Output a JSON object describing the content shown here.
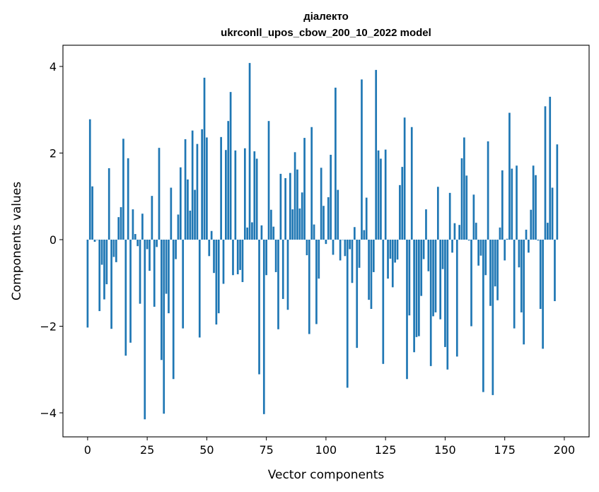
{
  "chart_data": {
    "type": "bar",
    "title_line1": "діалекто",
    "title_line2": "ukrconll_upos_cbow_200_10_2022 model",
    "xlabel": "Vector components",
    "ylabel": "Components values",
    "xlim": [
      -10.35,
      210.4
    ],
    "ylim": [
      -4.555,
      4.49
    ],
    "xticks": [
      0,
      25,
      50,
      75,
      100,
      125,
      150,
      175,
      200
    ],
    "xtick_labels": [
      "0",
      "25",
      "50",
      "75",
      "100",
      "125",
      "150",
      "175",
      "200"
    ],
    "yticks": [
      -4,
      -2,
      0,
      2,
      4
    ],
    "ytick_labels": [
      "−4",
      "−2",
      "0",
      "2",
      "4"
    ],
    "grid": false,
    "bar_color": "#1f77b4",
    "values": [
      -2.03,
      2.78,
      1.23,
      -0.05,
      0,
      -1.65,
      -0.58,
      -1.38,
      -1.03,
      1.65,
      -2.06,
      -0.4,
      -0.52,
      0.52,
      0.75,
      2.33,
      -2.68,
      1.88,
      -2.38,
      0.7,
      0.13,
      -0.15,
      -1.48,
      0.6,
      -4.15,
      -0.22,
      -0.72,
      1.01,
      -1.55,
      -0.17,
      2.12,
      -2.78,
      -4.02,
      -1.25,
      -1.7,
      1.2,
      -3.22,
      -0.45,
      0.58,
      1.67,
      -2.05,
      2.32,
      1.39,
      0.67,
      2.52,
      1.15,
      2.21,
      -2.26,
      2.55,
      3.74,
      2.36,
      -0.38,
      0.2,
      -0.77,
      -1.96,
      -1.7,
      2.37,
      -1.02,
      2.07,
      2.74,
      3.41,
      -0.82,
      2.06,
      -0.8,
      -0.7,
      -0.98,
      2.11,
      0.28,
      4.08,
      0.4,
      2.04,
      1.87,
      -3.11,
      0.33,
      -4.03,
      -0.82,
      2.74,
      0.69,
      0.3,
      -0.75,
      -2.07,
      1.52,
      -1.37,
      1.42,
      -1.62,
      1.54,
      0.7,
      2.02,
      1.62,
      0.72,
      1.09,
      2.35,
      -0.36,
      -2.18,
      2.6,
      0.35,
      -1.95,
      -0.9,
      1.66,
      0.78,
      -0.1,
      0.98,
      1.96,
      -0.35,
      3.51,
      1.15,
      -0.48,
      0,
      -0.38,
      -3.42,
      -0.22,
      -1.0,
      0.29,
      -2.5,
      -0.65,
      3.7,
      0.22,
      0.97,
      -1.39,
      -1.6,
      -0.75,
      3.92,
      2.06,
      1.87,
      -2.87,
      2.08,
      -0.9,
      -0.44,
      -1.1,
      -0.53,
      -0.46,
      1.26,
      1.68,
      2.82,
      -3.22,
      -1.75,
      2.6,
      -2.6,
      -2.25,
      -2.23,
      -1.3,
      -0.45,
      0.7,
      -0.73,
      -2.92,
      -1.77,
      -1.68,
      1.22,
      -1.84,
      -0.68,
      -2.48,
      -3.0,
      1.08,
      -0.3,
      0.38,
      -2.7,
      0.34,
      1.88,
      2.36,
      1.48,
      -0.02,
      -2.0,
      1.04,
      0.39,
      -0.6,
      -0.37,
      -3.52,
      -0.82,
      2.27,
      -1.53,
      -3.59,
      -1.08,
      -1.4,
      0.28,
      1.6,
      -0.48,
      0.02,
      2.93,
      1.64,
      -2.05,
      1.71,
      -0.64,
      -1.68,
      -2.42,
      0.23,
      -0.3,
      0.69,
      1.71,
      1.49,
      -0.02,
      -1.6,
      -2.52,
      3.08,
      0.39,
      3.3,
      1.2,
      -1.42,
      2.2
    ]
  }
}
